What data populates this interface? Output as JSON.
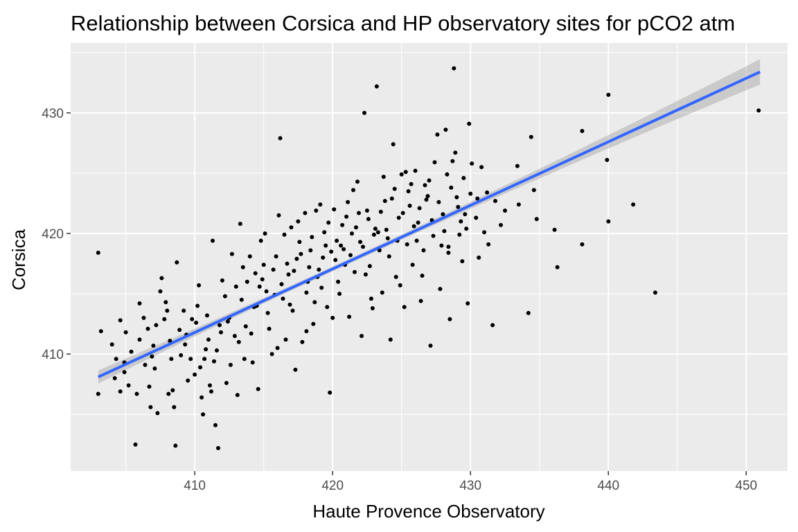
{
  "chart_data": {
    "type": "scatter",
    "title": "Relationship between Corsica and HP observatory sites for pCO2 atm",
    "xlabel": "Haute Provence Observatory",
    "ylabel": "Corsica",
    "xlim": [
      401.0,
      453.0
    ],
    "ylim": [
      400.3,
      435.8
    ],
    "x_ticks": [
      410,
      420,
      430,
      440,
      450
    ],
    "y_ticks": [
      410,
      420,
      430
    ],
    "grid": true,
    "panel_background": "#ebebeb",
    "point_color": "#000000",
    "trend": {
      "method": "linear",
      "color": "#3366ff",
      "band_color": "#999999",
      "points": [
        [
          403.0,
          408.1
        ],
        [
          451.0,
          433.4
        ]
      ],
      "band_halfwidth_ends": [
        0.55,
        1.05
      ],
      "band_halfwidth_mid": 0.2,
      "band_center_x": 420.0
    },
    "points": [
      [
        403.0,
        418.4
      ],
      [
        403.0,
        406.7
      ],
      [
        403.2,
        411.9
      ],
      [
        404.0,
        410.8
      ],
      [
        404.2,
        408.0
      ],
      [
        404.6,
        412.8
      ],
      [
        404.6,
        406.9
      ],
      [
        404.9,
        409.3
      ],
      [
        404.9,
        408.5
      ],
      [
        405.0,
        411.8
      ],
      [
        405.7,
        402.5
      ],
      [
        405.8,
        406.7
      ],
      [
        406.0,
        414.2
      ],
      [
        406.0,
        411.2
      ],
      [
        406.3,
        413.0
      ],
      [
        406.4,
        409.1
      ],
      [
        406.7,
        407.3
      ],
      [
        406.8,
        405.6
      ],
      [
        407.0,
        410.7
      ],
      [
        407.2,
        412.4
      ],
      [
        407.3,
        405.1
      ],
      [
        407.5,
        415.2
      ],
      [
        407.6,
        416.3
      ],
      [
        407.8,
        412.9
      ],
      [
        408.0,
        413.6
      ],
      [
        408.1,
        406.7
      ],
      [
        408.3,
        409.6
      ],
      [
        408.5,
        405.6
      ],
      [
        408.6,
        402.4
      ],
      [
        408.7,
        417.6
      ],
      [
        409.0,
        409.9
      ],
      [
        409.2,
        413.6
      ],
      [
        409.4,
        411.6
      ],
      [
        409.7,
        409.6
      ],
      [
        409.8,
        412.9
      ],
      [
        410.0,
        408.3
      ],
      [
        410.2,
        414.0
      ],
      [
        410.4,
        408.9
      ],
      [
        410.5,
        406.4
      ],
      [
        410.6,
        405.0
      ],
      [
        410.8,
        410.4
      ],
      [
        411.0,
        411.2
      ],
      [
        411.1,
        407.4
      ],
      [
        411.3,
        419.4
      ],
      [
        411.4,
        409.4
      ],
      [
        411.5,
        404.1
      ],
      [
        411.7,
        402.2
      ],
      [
        411.8,
        412.4
      ],
      [
        412.0,
        416.1
      ],
      [
        412.3,
        407.6
      ],
      [
        412.5,
        413.0
      ],
      [
        412.7,
        418.3
      ],
      [
        412.9,
        411.5
      ],
      [
        413.1,
        406.6
      ],
      [
        413.3,
        420.8
      ],
      [
        413.4,
        414.5
      ],
      [
        413.6,
        409.6
      ],
      [
        413.8,
        416.0
      ],
      [
        414.0,
        418.1
      ],
      [
        414.1,
        411.7
      ],
      [
        414.4,
        416.7
      ],
      [
        414.6,
        407.1
      ],
      [
        414.8,
        419.4
      ],
      [
        415.0,
        417.4
      ],
      [
        415.2,
        415.2
      ],
      [
        415.4,
        412.1
      ],
      [
        415.6,
        410.0
      ],
      [
        415.9,
        418.1
      ],
      [
        416.1,
        421.5
      ],
      [
        416.2,
        427.9
      ],
      [
        416.4,
        414.6
      ],
      [
        416.6,
        411.2
      ],
      [
        416.8,
        416.6
      ],
      [
        417.0,
        420.5
      ],
      [
        417.1,
        413.6
      ],
      [
        417.3,
        408.7
      ],
      [
        417.4,
        417.9
      ],
      [
        417.6,
        419.3
      ],
      [
        417.8,
        411.0
      ],
      [
        418.0,
        421.7
      ],
      [
        418.2,
        416.0
      ],
      [
        418.4,
        418.6
      ],
      [
        418.6,
        412.5
      ],
      [
        418.8,
        421.9
      ],
      [
        419.0,
        417.0
      ],
      [
        419.2,
        415.5
      ],
      [
        419.4,
        420.1
      ],
      [
        419.6,
        413.9
      ],
      [
        419.8,
        406.8
      ],
      [
        419.9,
        418.5
      ],
      [
        420.1,
        422.0
      ],
      [
        420.3,
        419.4
      ],
      [
        420.5,
        415.0
      ],
      [
        420.7,
        420.7
      ],
      [
        420.9,
        417.4
      ],
      [
        421.1,
        422.6
      ],
      [
        421.2,
        413.1
      ],
      [
        421.4,
        420.0
      ],
      [
        421.6,
        416.8
      ],
      [
        421.8,
        424.3
      ],
      [
        422.0,
        419.3
      ],
      [
        422.1,
        411.5
      ],
      [
        422.3,
        430.0
      ],
      [
        422.5,
        421.9
      ],
      [
        422.7,
        417.3
      ],
      [
        422.9,
        413.8
      ],
      [
        423.1,
        420.4
      ],
      [
        423.2,
        432.2
      ],
      [
        423.4,
        418.6
      ],
      [
        423.6,
        415.1
      ],
      [
        423.8,
        422.7
      ],
      [
        424.0,
        419.6
      ],
      [
        424.2,
        411.2
      ],
      [
        424.4,
        427.4
      ],
      [
        424.6,
        416.4
      ],
      [
        424.8,
        421.3
      ],
      [
        425.0,
        424.9
      ],
      [
        425.2,
        413.9
      ],
      [
        425.4,
        419.1
      ],
      [
        425.6,
        422.3
      ],
      [
        425.8,
        417.4
      ],
      [
        426.0,
        425.2
      ],
      [
        426.2,
        420.9
      ],
      [
        426.4,
        414.4
      ],
      [
        426.6,
        418.6
      ],
      [
        426.8,
        422.8
      ],
      [
        427.0,
        424.4
      ],
      [
        427.1,
        410.7
      ],
      [
        427.3,
        419.8
      ],
      [
        427.6,
        428.2
      ],
      [
        427.8,
        415.4
      ],
      [
        428.0,
        421.6
      ],
      [
        428.2,
        428.6
      ],
      [
        428.4,
        418.4
      ],
      [
        428.5,
        412.9
      ],
      [
        428.7,
        426.0
      ],
      [
        428.8,
        433.7
      ],
      [
        429.0,
        423.0
      ],
      [
        429.2,
        419.9
      ],
      [
        429.4,
        417.7
      ],
      [
        429.6,
        421.6
      ],
      [
        429.8,
        414.2
      ],
      [
        429.9,
        429.1
      ],
      [
        430.1,
        425.8
      ],
      [
        430.4,
        421.3
      ],
      [
        430.6,
        418.0
      ],
      [
        430.8,
        425.5
      ],
      [
        431.0,
        420.1
      ],
      [
        431.3,
        419.1
      ],
      [
        431.6,
        412.4
      ],
      [
        431.8,
        422.7
      ],
      [
        432.2,
        420.7
      ],
      [
        433.4,
        425.6
      ],
      [
        433.5,
        422.4
      ],
      [
        434.2,
        413.4
      ],
      [
        434.4,
        428.0
      ],
      [
        434.6,
        423.6
      ],
      [
        434.8,
        421.2
      ],
      [
        436.1,
        420.3
      ],
      [
        436.3,
        417.2
      ],
      [
        438.1,
        428.5
      ],
      [
        438.1,
        419.1
      ],
      [
        439.9,
        426.1
      ],
      [
        440.0,
        431.5
      ],
      [
        440.0,
        421.0
      ],
      [
        441.8,
        422.4
      ],
      [
        443.4,
        415.1
      ],
      [
        450.9,
        430.2
      ],
      [
        404.3,
        409.6
      ],
      [
        405.4,
        410.2
      ],
      [
        406.6,
        412.1
      ],
      [
        407.1,
        408.8
      ],
      [
        408.2,
        411.1
      ],
      [
        409.5,
        407.8
      ],
      [
        410.1,
        412.6
      ],
      [
        410.9,
        413.2
      ],
      [
        411.6,
        410.3
      ],
      [
        412.2,
        414.8
      ],
      [
        412.6,
        409.1
      ],
      [
        413.0,
        415.6
      ],
      [
        413.7,
        412.3
      ],
      [
        414.3,
        413.9
      ],
      [
        414.9,
        416.2
      ],
      [
        415.3,
        413.4
      ],
      [
        415.7,
        417.0
      ],
      [
        416.3,
        415.8
      ],
      [
        416.9,
        414.1
      ],
      [
        417.2,
        416.9
      ],
      [
        417.7,
        418.3
      ],
      [
        418.1,
        415.1
      ],
      [
        418.5,
        419.7
      ],
      [
        418.9,
        416.4
      ],
      [
        419.3,
        418.0
      ],
      [
        419.7,
        420.9
      ],
      [
        420.2,
        417.8
      ],
      [
        420.6,
        419.0
      ],
      [
        421.0,
        421.4
      ],
      [
        421.3,
        418.2
      ],
      [
        421.7,
        420.5
      ],
      [
        422.2,
        418.9
      ],
      [
        422.6,
        421.2
      ],
      [
        423.0,
        419.9
      ],
      [
        423.5,
        421.8
      ],
      [
        423.9,
        420.3
      ],
      [
        424.3,
        422.9
      ],
      [
        424.7,
        419.4
      ],
      [
        425.1,
        421.7
      ],
      [
        425.5,
        423.5
      ],
      [
        425.9,
        420.6
      ],
      [
        426.3,
        422.1
      ],
      [
        426.7,
        424.0
      ],
      [
        427.2,
        421.1
      ],
      [
        427.7,
        422.6
      ],
      [
        428.1,
        420.2
      ],
      [
        428.6,
        423.8
      ],
      [
        429.1,
        422.2
      ],
      [
        429.5,
        424.6
      ],
      [
        430.0,
        423.3
      ],
      [
        409.3,
        410.8
      ],
      [
        410.7,
        409.6
      ],
      [
        411.9,
        411.8
      ],
      [
        413.2,
        411.0
      ],
      [
        414.5,
        414.0
      ],
      [
        415.8,
        414.9
      ],
      [
        416.7,
        417.5
      ],
      [
        418.3,
        417.2
      ],
      [
        419.5,
        419.0
      ],
      [
        420.8,
        418.7
      ],
      [
        421.9,
        421.7
      ],
      [
        423.3,
        420.1
      ],
      [
        424.5,
        423.7
      ],
      [
        425.7,
        424.1
      ],
      [
        426.9,
        423.1
      ],
      [
        428.3,
        424.9
      ],
      [
        429.3,
        421.0
      ],
      [
        430.5,
        422.9
      ],
      [
        431.2,
        423.4
      ],
      [
        432.5,
        421.9
      ],
      [
        406.9,
        409.8
      ],
      [
        408.9,
        412.0
      ],
      [
        412.4,
        412.7
      ],
      [
        414.7,
        415.6
      ],
      [
        416.5,
        419.9
      ],
      [
        418.7,
        414.3
      ],
      [
        420.4,
        416.0
      ],
      [
        422.4,
        416.6
      ],
      [
        424.1,
        418.1
      ],
      [
        426.1,
        419.4
      ],
      [
        427.9,
        419.0
      ],
      [
        429.7,
        420.4
      ],
      [
        407.9,
        414.3
      ],
      [
        410.3,
        415.7
      ],
      [
        413.5,
        417.2
      ],
      [
        415.1,
        420.0
      ],
      [
        417.5,
        421.0
      ],
      [
        419.1,
        422.4
      ],
      [
        421.5,
        423.6
      ],
      [
        423.7,
        424.7
      ],
      [
        425.3,
        425.1
      ],
      [
        427.4,
        425.9
      ],
      [
        428.9,
        426.7
      ],
      [
        405.2,
        407.4
      ],
      [
        408.4,
        407.0
      ],
      [
        411.2,
        406.9
      ],
      [
        414.2,
        409.3
      ],
      [
        416.0,
        410.5
      ],
      [
        418.1,
        411.9
      ],
      [
        420.0,
        413.0
      ],
      [
        422.8,
        414.6
      ],
      [
        424.9,
        415.7
      ],
      [
        426.5,
        416.5
      ],
      [
        428.4,
        418.9
      ]
    ]
  }
}
